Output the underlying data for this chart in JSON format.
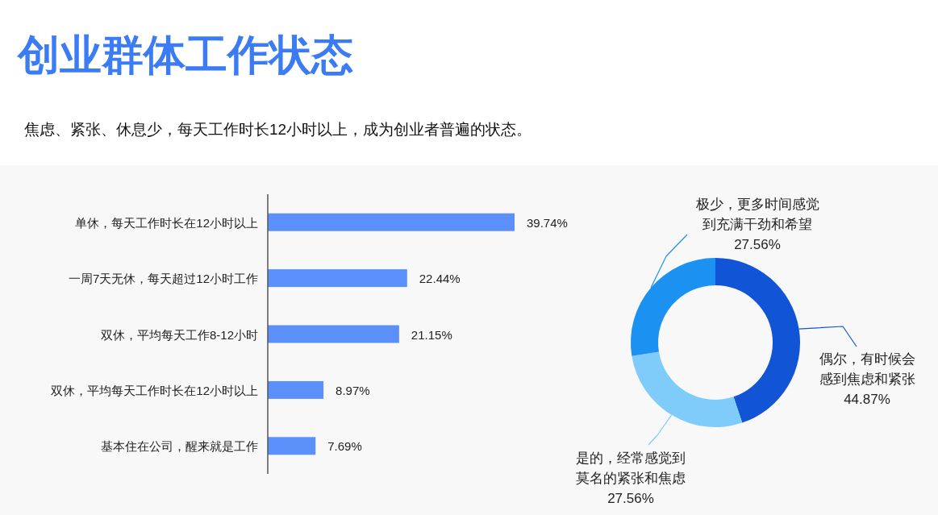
{
  "chart_data": [
    {
      "type": "bar",
      "orientation": "horizontal",
      "title": "创业群体工作状态",
      "subtitle": "焦虑、紧张、休息少，每天工作时长12小时以上，成为创业者普遍的状态。",
      "categories": [
        "单休，每天工作时长在12小时以上",
        "一周7天无休，每天超过12小时工作",
        "双休，平均每天工作8-12小时",
        "双休，平均每天工作时长在12小时以上",
        "基本住在公司，醒来就是工作"
      ],
      "values": [
        39.74,
        22.44,
        21.15,
        8.97,
        7.69
      ],
      "value_labels": [
        "39.74%",
        "22.44%",
        "21.15%",
        "8.97%",
        "7.69%"
      ],
      "color": "#5b8ff9"
    },
    {
      "type": "donut",
      "categories": [
        "偶尔，有时候会感到焦虑和紧张",
        "是的，经常感觉到莫名的紧张和焦虑",
        "极少，更多时间感觉到充满干劲和希望"
      ],
      "values": [
        44.87,
        27.56,
        27.56
      ],
      "value_labels": [
        "44.87%",
        "27.56%",
        "27.56%"
      ],
      "colors": [
        "#1154d6",
        "#7fcbfa",
        "#1b91f1"
      ]
    }
  ]
}
